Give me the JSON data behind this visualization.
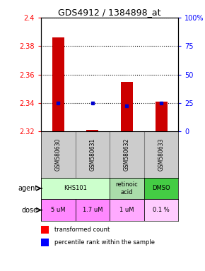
{
  "title": "GDS4912 / 1384898_at",
  "samples": [
    "GSM580630",
    "GSM580631",
    "GSM580632",
    "GSM580633"
  ],
  "bar_bottoms": [
    2.32,
    2.32,
    2.32,
    2.32
  ],
  "bar_tops": [
    2.386,
    2.321,
    2.355,
    2.341
  ],
  "percentile_values": [
    2.34,
    2.34,
    2.338,
    2.34
  ],
  "ylim": [
    2.32,
    2.4
  ],
  "yticks_left": [
    2.32,
    2.34,
    2.36,
    2.38,
    2.4
  ],
  "yticks_right_labels": [
    "0",
    "25",
    "50",
    "75",
    "100%"
  ],
  "yticks_right_pct": [
    0,
    25,
    50,
    75,
    100
  ],
  "agents": [
    {
      "label": "KHS101",
      "colspan": 2,
      "color": "#ccffcc"
    },
    {
      "label": "retinoic\nacid",
      "colspan": 1,
      "color": "#aaddaa"
    },
    {
      "label": "DMSO",
      "colspan": 1,
      "color": "#44cc44"
    }
  ],
  "doses": [
    {
      "label": "5 uM",
      "color": "#ff88ff"
    },
    {
      "label": "1.7 uM",
      "color": "#ff88ff"
    },
    {
      "label": "1 uM",
      "color": "#ffaaff"
    },
    {
      "label": "0.1 %",
      "color": "#ffccff"
    }
  ],
  "bar_color": "#cc0000",
  "dot_color": "#0000cc",
  "sample_bg_color": "#cccccc",
  "legend_red_label": "transformed count",
  "legend_blue_label": "percentile rank within the sample",
  "agent_label": "agent",
  "dose_label": "dose"
}
